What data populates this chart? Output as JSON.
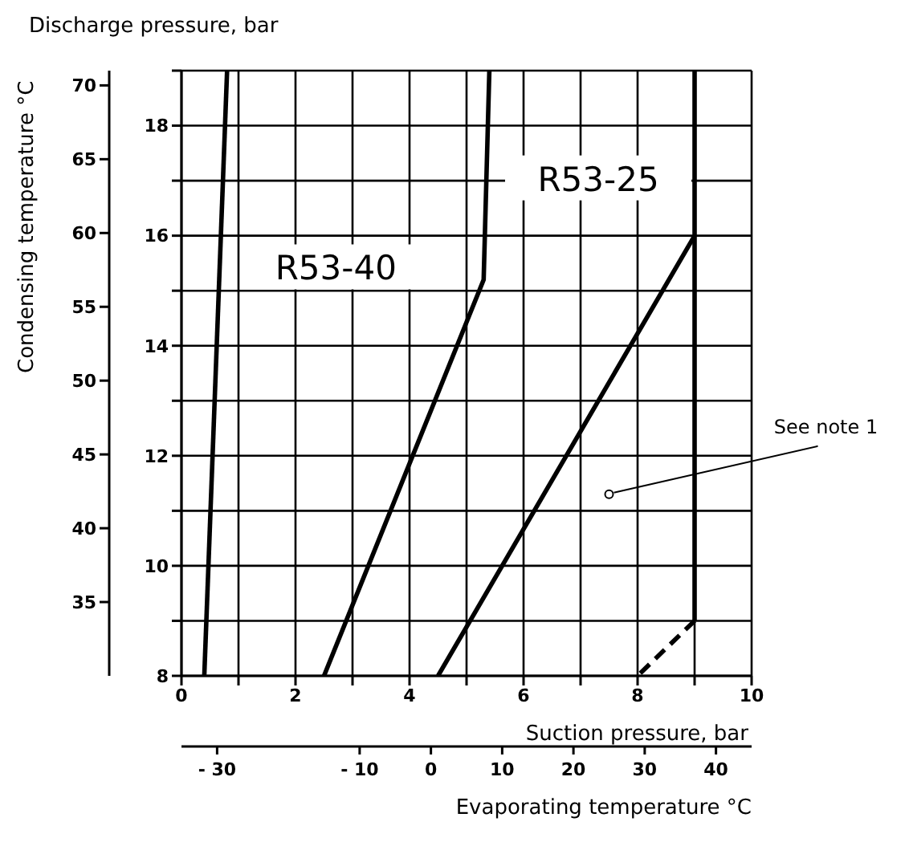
{
  "chart_data": {
    "type": "line",
    "ylabel": "Discharge pressure, bar",
    "xlabel": "Suction pressure, bar",
    "y2label": "Condensing temperature °C",
    "x2label": "Evaporating temperature °C",
    "xlim": [
      0,
      10
    ],
    "ylim": [
      8,
      19
    ],
    "xticks": [
      0,
      {
        "value": 1,
        "label": null
      },
      2,
      {
        "value": 3,
        "label": null
      },
      4,
      {
        "value": 5,
        "label": null
      },
      6,
      {
        "value": 7,
        "label": null
      },
      8,
      {
        "value": 9,
        "label": null
      },
      10
    ],
    "yticks": [
      8,
      {
        "value": 9,
        "label": null
      },
      10,
      {
        "value": 11,
        "label": null
      },
      12,
      {
        "value": 13,
        "label": null
      },
      14,
      {
        "value": 15,
        "label": null
      },
      16,
      {
        "value": 17,
        "label": null
      },
      18,
      {
        "value": 19,
        "label": null
      }
    ],
    "y2lim": [
      30,
      71
    ],
    "y2ticks": [
      35,
      40,
      45,
      50,
      55,
      60,
      65,
      70
    ],
    "x2lim": [
      -35,
      45
    ],
    "x2ticks": [
      {
        "value": -30,
        "label": "- 30"
      },
      {
        "value": -10,
        "label": "- 10"
      },
      0,
      10,
      20,
      30,
      40
    ],
    "grid": true,
    "marker": "none",
    "series": [
      {
        "color": "#000000",
        "x": [
          0.4,
          0.8
        ],
        "values": [
          8,
          19
        ]
      },
      {
        "name": "R53-40",
        "color": "#000000",
        "x": [
          2.5,
          5.3,
          5.4
        ],
        "values": [
          8,
          15.2,
          19
        ]
      },
      {
        "name": "R53-25",
        "color": "#000000",
        "x": [
          4.5,
          9,
          9
        ],
        "values": [
          8,
          16,
          19
        ]
      },
      {
        "color": "#000000",
        "x": [
          9,
          9
        ],
        "values": [
          16,
          9
        ]
      },
      {
        "color": "#000000",
        "line_style": "dashed",
        "x": [
          9,
          8
        ],
        "values": [
          9,
          8
        ]
      }
    ],
    "annotations": [
      {
        "text": "See note 1",
        "x": 7.5,
        "y": 11.3
      }
    ]
  }
}
